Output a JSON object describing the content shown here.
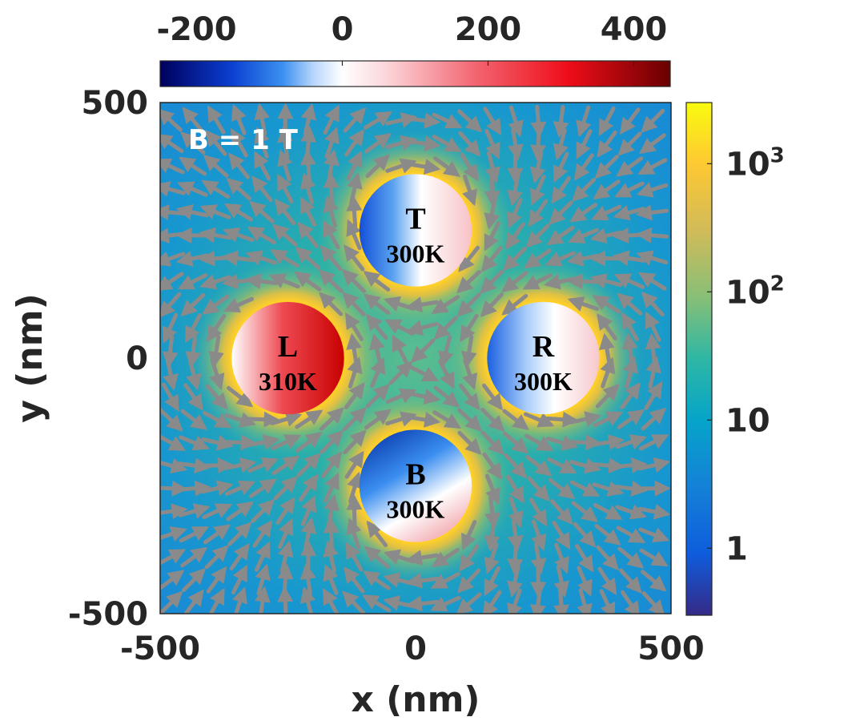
{
  "chart_data": {
    "type": "heatmap",
    "title": "",
    "annotation": "B = 1 T",
    "xlabel": "x (nm)",
    "ylabel": "y (nm)",
    "xlim": [
      -500,
      500
    ],
    "ylim": [
      -500,
      500
    ],
    "xticks": [
      -500,
      0,
      500
    ],
    "yticks": [
      -500,
      0,
      500
    ],
    "xtick_labels": [
      "-500",
      "0",
      "500"
    ],
    "ytick_labels": [
      "-500",
      "0",
      "500"
    ],
    "grid": false,
    "background_field": {
      "colormap": "parula",
      "scale": "log",
      "range": [
        0.3,
        3000
      ],
      "colorbar": {
        "position": "right",
        "ticks": [
          1,
          10,
          100,
          1000
        ],
        "tick_labels": [
          {
            "base": "1",
            "exp": ""
          },
          {
            "base": "10",
            "exp": ""
          },
          {
            "base": "10",
            "exp": "2"
          },
          {
            "base": "10",
            "exp": "3"
          }
        ]
      }
    },
    "particle_field": {
      "colormap": "blue-white-red",
      "range": [
        -250,
        450
      ],
      "colorbar": {
        "position": "top",
        "ticks": [
          -200,
          0,
          200,
          400
        ],
        "tick_labels": [
          "-200",
          "0",
          "200",
          "400"
        ]
      }
    },
    "particles": [
      {
        "id": "L",
        "label": "L",
        "temp_label": "310K",
        "x": -250,
        "y": 0,
        "r": 110
      },
      {
        "id": "T",
        "label": "T",
        "temp_label": "300K",
        "x": 0,
        "y": 250,
        "r": 110
      },
      {
        "id": "R",
        "label": "R",
        "temp_label": "300K",
        "x": 250,
        "y": 0,
        "r": 110
      },
      {
        "id": "B",
        "label": "B",
        "temp_label": "300K",
        "x": 0,
        "y": -250,
        "r": 110
      }
    ],
    "vector_field": {
      "color": "#8a8a8a",
      "spacing": 45,
      "arrow_length": 34
    }
  },
  "colors": {
    "axis_text": "#262626",
    "arrow": "#8a8a8a",
    "label_text": "#000000",
    "annotation_text": "#ffffff"
  }
}
